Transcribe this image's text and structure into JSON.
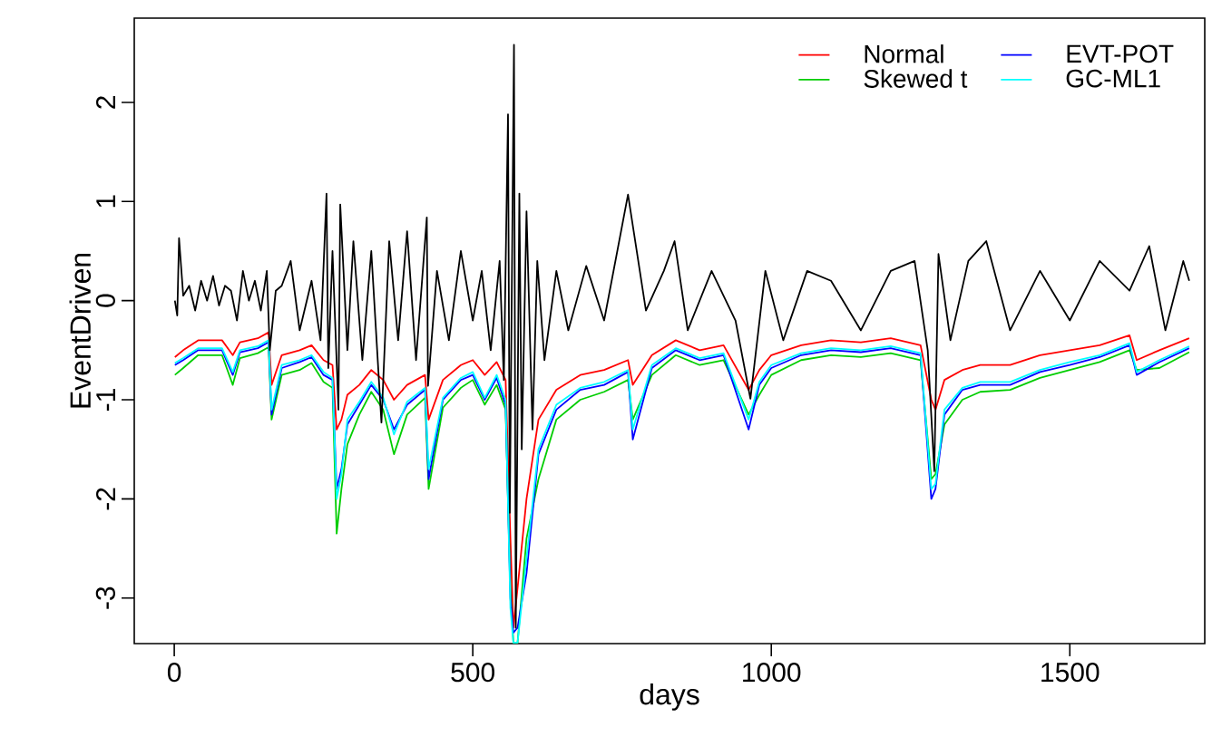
{
  "chart_data": {
    "type": "line",
    "xlabel": "days",
    "ylabel": "EventDriven",
    "xlim": [
      -67,
      1726
    ],
    "ylim": [
      -3.46,
      2.85
    ],
    "xticks": [
      0,
      500,
      1000,
      1500
    ],
    "yticks": [
      -3,
      -2,
      -1,
      0,
      1,
      2
    ],
    "legend": "top right",
    "x": [
      1,
      15,
      40,
      80,
      98,
      110,
      140,
      158,
      163,
      180,
      210,
      230,
      250,
      265,
      272,
      280,
      290,
      310,
      330,
      350,
      368,
      390,
      420,
      426,
      450,
      480,
      500,
      520,
      540,
      555,
      563,
      568,
      575,
      590,
      610,
      640,
      680,
      720,
      760,
      768,
      800,
      840,
      880,
      920,
      962,
      980,
      1000,
      1050,
      1100,
      1150,
      1200,
      1250,
      1268,
      1275,
      1290,
      1320,
      1350,
      1400,
      1450,
      1500,
      1550,
      1600,
      1612,
      1650,
      1700
    ],
    "series": [
      {
        "name": "Normal",
        "color": "#ff0000",
        "values": [
          -0.57,
          -0.5,
          -0.4,
          -0.4,
          -0.55,
          -0.42,
          -0.38,
          -0.32,
          -0.85,
          -0.55,
          -0.5,
          -0.45,
          -0.6,
          -0.65,
          -1.3,
          -1.2,
          -0.95,
          -0.85,
          -0.7,
          -0.8,
          -1.0,
          -0.85,
          -0.75,
          -1.2,
          -0.8,
          -0.65,
          -0.6,
          -0.75,
          -0.62,
          -0.8,
          -2.4,
          -3.3,
          -2.9,
          -2.0,
          -1.2,
          -0.9,
          -0.75,
          -0.7,
          -0.6,
          -0.85,
          -0.55,
          -0.4,
          -0.5,
          -0.45,
          -0.9,
          -0.7,
          -0.55,
          -0.45,
          -0.4,
          -0.42,
          -0.38,
          -0.45,
          -1.0,
          -1.1,
          -0.8,
          -0.7,
          -0.65,
          -0.65,
          -0.55,
          -0.5,
          -0.45,
          -0.35,
          -0.6,
          -0.5,
          -0.38
        ]
      },
      {
        "name": "Skewed t",
        "color": "#00cd00",
        "values": [
          -0.75,
          -0.68,
          -0.55,
          -0.55,
          -0.85,
          -0.58,
          -0.53,
          -0.47,
          -1.2,
          -0.75,
          -0.7,
          -0.63,
          -0.82,
          -0.88,
          -2.35,
          -1.9,
          -1.45,
          -1.15,
          -0.92,
          -1.1,
          -1.55,
          -1.15,
          -0.98,
          -1.9,
          -1.08,
          -0.88,
          -0.8,
          -1.05,
          -0.85,
          -1.1,
          -2.9,
          -3.45,
          -3.45,
          -2.4,
          -1.8,
          -1.2,
          -1.0,
          -0.92,
          -0.8,
          -1.2,
          -0.75,
          -0.55,
          -0.65,
          -0.6,
          -1.15,
          -0.95,
          -0.75,
          -0.6,
          -0.55,
          -0.57,
          -0.53,
          -0.6,
          -1.8,
          -1.75,
          -1.25,
          -1.0,
          -0.92,
          -0.9,
          -0.78,
          -0.7,
          -0.62,
          -0.5,
          -0.7,
          -0.68,
          -0.52
        ]
      },
      {
        "name": "EVT-POT",
        "color": "#0000ff",
        "values": [
          -0.65,
          -0.6,
          -0.5,
          -0.5,
          -0.75,
          -0.52,
          -0.48,
          -0.42,
          -1.15,
          -0.68,
          -0.62,
          -0.57,
          -0.75,
          -0.8,
          -1.9,
          -1.7,
          -1.25,
          -1.05,
          -0.85,
          -1.0,
          -1.3,
          -1.05,
          -0.9,
          -1.8,
          -1.0,
          -0.8,
          -0.75,
          -1.0,
          -0.78,
          -1.05,
          -3.0,
          -3.35,
          -3.3,
          -2.75,
          -1.55,
          -1.1,
          -0.9,
          -0.85,
          -0.72,
          -1.4,
          -0.68,
          -0.5,
          -0.6,
          -0.55,
          -1.3,
          -0.85,
          -0.68,
          -0.55,
          -0.5,
          -0.52,
          -0.48,
          -0.55,
          -2.0,
          -1.9,
          -1.15,
          -0.9,
          -0.85,
          -0.85,
          -0.72,
          -0.65,
          -0.57,
          -0.45,
          -0.75,
          -0.62,
          -0.48
        ]
      },
      {
        "name": "GC-ML1",
        "color": "#00ffff",
        "values": [
          -0.63,
          -0.58,
          -0.48,
          -0.48,
          -0.72,
          -0.5,
          -0.46,
          -0.4,
          -1.1,
          -0.65,
          -0.6,
          -0.55,
          -0.72,
          -0.78,
          -2.0,
          -1.75,
          -1.2,
          -1.02,
          -0.82,
          -0.98,
          -1.35,
          -1.02,
          -0.88,
          -1.7,
          -0.98,
          -0.78,
          -0.72,
          -0.98,
          -0.75,
          -1.0,
          -3.1,
          -3.45,
          -3.45,
          -2.6,
          -1.5,
          -1.05,
          -0.88,
          -0.82,
          -0.7,
          -1.3,
          -0.65,
          -0.48,
          -0.58,
          -0.53,
          -1.2,
          -0.82,
          -0.65,
          -0.53,
          -0.48,
          -0.5,
          -0.46,
          -0.53,
          -1.9,
          -1.85,
          -1.1,
          -0.88,
          -0.82,
          -0.82,
          -0.7,
          -0.62,
          -0.55,
          -0.43,
          -0.72,
          -0.6,
          -0.46
        ]
      },
      {
        "color": "#000000",
        "x": [
          1,
          5,
          8,
          15,
          25,
          35,
          45,
          55,
          65,
          75,
          85,
          95,
          105,
          115,
          125,
          135,
          145,
          155,
          160,
          170,
          180,
          195,
          210,
          230,
          245,
          255,
          258,
          265,
          275,
          278,
          290,
          300,
          315,
          330,
          347,
          360,
          375,
          390,
          405,
          423,
          425,
          440,
          460,
          480,
          500,
          515,
          530,
          545,
          552,
          559,
          562,
          569,
          572,
          578,
          582,
          590,
          600,
          608,
          620,
          640,
          660,
          690,
          720,
          760,
          790,
          820,
          838,
          860,
          900,
          940,
          965,
          990,
          1020,
          1060,
          1100,
          1150,
          1200,
          1240,
          1262,
          1273,
          1280,
          1300,
          1330,
          1360,
          1400,
          1450,
          1500,
          1550,
          1600,
          1633,
          1660,
          1690,
          1700
        ],
        "values": [
          0.0,
          -0.15,
          0.63,
          0.05,
          0.15,
          -0.1,
          0.2,
          0.0,
          0.25,
          -0.05,
          0.15,
          0.1,
          -0.2,
          0.3,
          0.0,
          0.2,
          -0.1,
          0.3,
          -0.5,
          0.1,
          0.15,
          0.4,
          -0.3,
          0.2,
          -0.4,
          1.08,
          -0.68,
          0.5,
          -1.1,
          0.97,
          -0.5,
          0.6,
          -0.6,
          0.5,
          -1.23,
          0.6,
          -0.4,
          0.7,
          -0.6,
          0.84,
          -0.86,
          0.3,
          -0.4,
          0.5,
          -0.2,
          0.3,
          -0.5,
          0.4,
          -0.8,
          1.88,
          -2.14,
          2.58,
          -3.3,
          1.08,
          -1.5,
          0.9,
          -1.3,
          0.4,
          -0.6,
          0.3,
          -0.3,
          0.35,
          -0.2,
          1.07,
          -0.1,
          0.3,
          0.6,
          -0.3,
          0.3,
          -0.2,
          -0.99,
          0.3,
          -0.4,
          0.3,
          0.2,
          -0.3,
          0.3,
          0.4,
          -0.5,
          -1.72,
          0.47,
          -0.4,
          0.4,
          0.6,
          -0.3,
          0.3,
          -0.2,
          0.4,
          0.1,
          0.55,
          -0.3,
          0.4,
          0.2
        ]
      }
    ]
  }
}
